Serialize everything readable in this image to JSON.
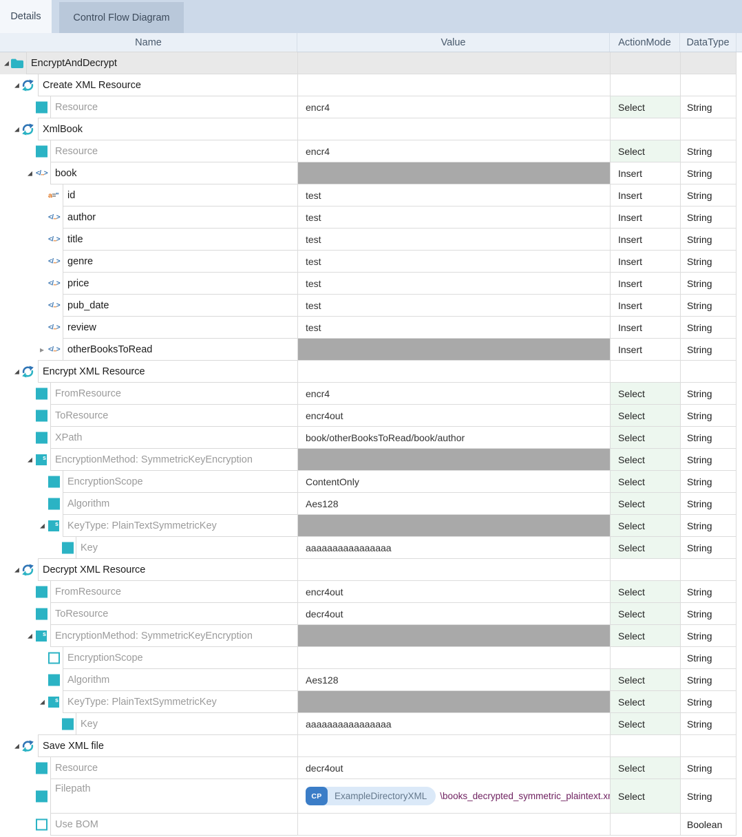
{
  "tabs": [
    {
      "label": "Details",
      "active": true
    },
    {
      "label": "Control Flow Diagram",
      "active": false
    }
  ],
  "columns": [
    "Name",
    "Value",
    "ActionMode",
    "DataType"
  ],
  "filepath": {
    "badge": "CP",
    "directory": "ExampleDirectoryXML",
    "path": "\\books_decrypted_symmetric_plaintext.xml"
  },
  "colors": {
    "accent_teal": "#2bb3c4",
    "accent_blue": "#2e74b5",
    "icon_orange": "#e0731d",
    "select_cell_bg": "#edf7ef",
    "gray_value_bg": "#a9a9a9",
    "tab_bar_bg": "#ccd9e9",
    "inactive_tab_bg": "#b9c8da",
    "active_tab_bg": "#f4f7fb",
    "header_bg": "#eaf0f7",
    "badge_blue": "#3b7dc7",
    "pill_bg": "#dbe9f8",
    "path_text": "#6f2160",
    "top_row_bg": "#e9e9e9"
  },
  "rows": [
    {
      "level": 0,
      "expander": "expanded",
      "icon": "folder",
      "name": "EncryptAndDecrypt",
      "name_style": "dark",
      "value": "",
      "action": "",
      "datatype": "",
      "top_row": true
    },
    {
      "level": 1,
      "expander": "expanded",
      "icon": "refresh",
      "name": "Create XML Resource",
      "name_style": "dark",
      "value": "",
      "action": "",
      "datatype": ""
    },
    {
      "level": 2,
      "icon": "checkbox-checked",
      "name": "Resource",
      "name_style": "muted",
      "value": "encr4",
      "action": "Select",
      "datatype": "String"
    },
    {
      "level": 1,
      "expander": "expanded",
      "icon": "refresh",
      "name": "XmlBook",
      "name_style": "dark",
      "value": "",
      "action": "",
      "datatype": ""
    },
    {
      "level": 2,
      "icon": "checkbox-checked",
      "name": "Resource",
      "name_style": "muted",
      "value": "encr4",
      "action": "Select",
      "datatype": "String"
    },
    {
      "level": 2,
      "expander": "expanded",
      "icon": "xml-element",
      "name": "book",
      "name_style": "dark",
      "value": "",
      "value_gray": true,
      "action": "Insert",
      "datatype": "String"
    },
    {
      "level": 3,
      "icon": "xml-attribute",
      "name": "id",
      "name_style": "dark",
      "value": "test",
      "action": "Insert",
      "datatype": "String"
    },
    {
      "level": 3,
      "icon": "xml-element",
      "name": "author",
      "name_style": "dark",
      "value": "test",
      "action": "Insert",
      "datatype": "String"
    },
    {
      "level": 3,
      "icon": "xml-element",
      "name": "title",
      "name_style": "dark",
      "value": "test",
      "action": "Insert",
      "datatype": "String"
    },
    {
      "level": 3,
      "icon": "xml-element",
      "name": "genre",
      "name_style": "dark",
      "value": "test",
      "action": "Insert",
      "datatype": "String"
    },
    {
      "level": 3,
      "icon": "xml-element",
      "name": "price",
      "name_style": "dark",
      "value": "test",
      "action": "Insert",
      "datatype": "String"
    },
    {
      "level": 3,
      "icon": "xml-element",
      "name": "pub_date",
      "name_style": "dark",
      "value": "test",
      "action": "Insert",
      "datatype": "String"
    },
    {
      "level": 3,
      "icon": "xml-element",
      "name": "review",
      "name_style": "dark",
      "value": "test",
      "action": "Insert",
      "datatype": "String"
    },
    {
      "level": 3,
      "expander": "collapsed",
      "icon": "xml-element",
      "name": "otherBooksToRead",
      "name_style": "dark",
      "value": "",
      "value_gray": true,
      "action": "Insert",
      "datatype": "String"
    },
    {
      "level": 1,
      "expander": "expanded",
      "icon": "refresh",
      "name": "Encrypt XML Resource",
      "name_style": "dark",
      "value": "",
      "action": "",
      "datatype": ""
    },
    {
      "level": 2,
      "icon": "checkbox-checked",
      "name": "FromResource",
      "name_style": "muted",
      "value": "encr4",
      "action": "Select",
      "datatype": "String"
    },
    {
      "level": 2,
      "icon": "checkbox-checked",
      "name": "ToResource",
      "name_style": "muted",
      "value": "encr4out",
      "action": "Select",
      "datatype": "String"
    },
    {
      "level": 2,
      "icon": "checkbox-checked",
      "name": "XPath",
      "name_style": "muted",
      "value": "book/otherBooksToRead/book/author",
      "action": "Select",
      "datatype": "String"
    },
    {
      "level": 2,
      "expander": "expanded",
      "icon": "struct",
      "name": "EncryptionMethod: SymmetricKeyEncryption",
      "name_style": "muted",
      "value": "",
      "value_gray": true,
      "action": "Select",
      "datatype": "String"
    },
    {
      "level": 3,
      "icon": "checkbox-checked",
      "name": "EncryptionScope",
      "name_style": "muted",
      "value": "ContentOnly",
      "action": "Select",
      "datatype": "String"
    },
    {
      "level": 3,
      "icon": "checkbox-checked",
      "name": "Algorithm",
      "name_style": "muted",
      "value": "Aes128",
      "action": "Select",
      "datatype": "String"
    },
    {
      "level": 3,
      "expander": "expanded",
      "icon": "struct",
      "name": "KeyType: PlainTextSymmetricKey",
      "name_style": "muted",
      "value": "",
      "value_gray": true,
      "action": "Select",
      "datatype": "String"
    },
    {
      "level": 4,
      "icon": "checkbox-checked",
      "name": "Key",
      "name_style": "muted",
      "value": "aaaaaaaaaaaaaaaa",
      "action": "Select",
      "datatype": "String"
    },
    {
      "level": 1,
      "expander": "expanded",
      "icon": "refresh",
      "name": "Decrypt XML Resource",
      "name_style": "dark",
      "value": "",
      "action": "",
      "datatype": ""
    },
    {
      "level": 2,
      "icon": "checkbox-checked",
      "name": "FromResource",
      "name_style": "muted",
      "value": "encr4out",
      "action": "Select",
      "datatype": "String"
    },
    {
      "level": 2,
      "icon": "checkbox-checked",
      "name": "ToResource",
      "name_style": "muted",
      "value": "decr4out",
      "action": "Select",
      "datatype": "String"
    },
    {
      "level": 2,
      "expander": "expanded",
      "icon": "struct",
      "name": "EncryptionMethod: SymmetricKeyEncryption",
      "name_style": "muted",
      "value": "",
      "value_gray": true,
      "action": "Select",
      "datatype": "String"
    },
    {
      "level": 3,
      "icon": "checkbox-unchecked",
      "name": "EncryptionScope",
      "name_style": "muted",
      "value": "",
      "action": "",
      "datatype": "String"
    },
    {
      "level": 3,
      "icon": "checkbox-checked",
      "name": "Algorithm",
      "name_style": "muted",
      "value": "Aes128",
      "action": "Select",
      "datatype": "String"
    },
    {
      "level": 3,
      "expander": "expanded",
      "icon": "struct",
      "name": "KeyType: PlainTextSymmetricKey",
      "name_style": "muted",
      "value": "",
      "value_gray": true,
      "action": "Select",
      "datatype": "String"
    },
    {
      "level": 4,
      "icon": "checkbox-checked",
      "name": "Key",
      "name_style": "muted",
      "value": "aaaaaaaaaaaaaaaa",
      "action": "Select",
      "datatype": "String"
    },
    {
      "level": 1,
      "expander": "expanded",
      "icon": "refresh",
      "name": "Save XML file",
      "name_style": "dark",
      "value": "",
      "action": "",
      "datatype": ""
    },
    {
      "level": 2,
      "icon": "checkbox-checked",
      "name": "Resource",
      "name_style": "muted",
      "value": "decr4out",
      "action": "Select",
      "datatype": "String"
    },
    {
      "level": 2,
      "icon": "checkbox-checked",
      "name": "Filepath",
      "name_style": "muted",
      "value_type": "filepath",
      "action": "Select",
      "datatype": "String",
      "tall": true
    },
    {
      "level": 2,
      "icon": "checkbox-unchecked",
      "name": "Use BOM",
      "name_style": "muted",
      "value": "",
      "action": "",
      "datatype": "Boolean"
    }
  ]
}
